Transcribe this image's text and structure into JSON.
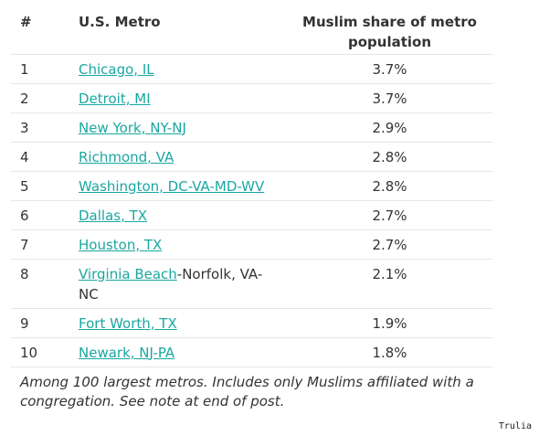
{
  "table": {
    "headers": {
      "rank": "#",
      "metro": "U.S. Metro",
      "share": "Muslim share of metro population"
    },
    "rows": [
      {
        "rank": "1",
        "metro_link": "Chicago, IL",
        "metro_suffix": "",
        "share": "3.7%"
      },
      {
        "rank": "2",
        "metro_link": "Detroit, MI",
        "metro_suffix": "",
        "share": "3.7%"
      },
      {
        "rank": "3",
        "metro_link": "New York, NY-NJ",
        "metro_suffix": "",
        "share": "2.9%"
      },
      {
        "rank": "4",
        "metro_link": "Richmond, VA",
        "metro_suffix": "",
        "share": "2.8%"
      },
      {
        "rank": "5",
        "metro_link": "Washington, DC-VA-MD-WV",
        "metro_suffix": "",
        "share": "2.8%"
      },
      {
        "rank": "6",
        "metro_link": "Dallas, TX",
        "metro_suffix": "",
        "share": "2.7%"
      },
      {
        "rank": "7",
        "metro_link": "Houston, TX",
        "metro_suffix": "",
        "share": "2.7%"
      },
      {
        "rank": "8",
        "metro_link": "Virginia Beach",
        "metro_suffix": "-Norfolk, VA-NC",
        "share": "2.1%"
      },
      {
        "rank": "9",
        "metro_link": "Fort Worth, TX",
        "metro_suffix": "",
        "share": "1.9%"
      },
      {
        "rank": "10",
        "metro_link": "Newark, NJ-PA",
        "metro_suffix": "",
        "share": "1.8%"
      }
    ]
  },
  "footnote": "Among 100 largest metros. Includes only Muslims affiliated with a congregation. See note at end of post.",
  "credit": "Trulia",
  "colors": {
    "link": "#1aa7a1",
    "text": "#333333",
    "divider": "#e6e6e6"
  }
}
